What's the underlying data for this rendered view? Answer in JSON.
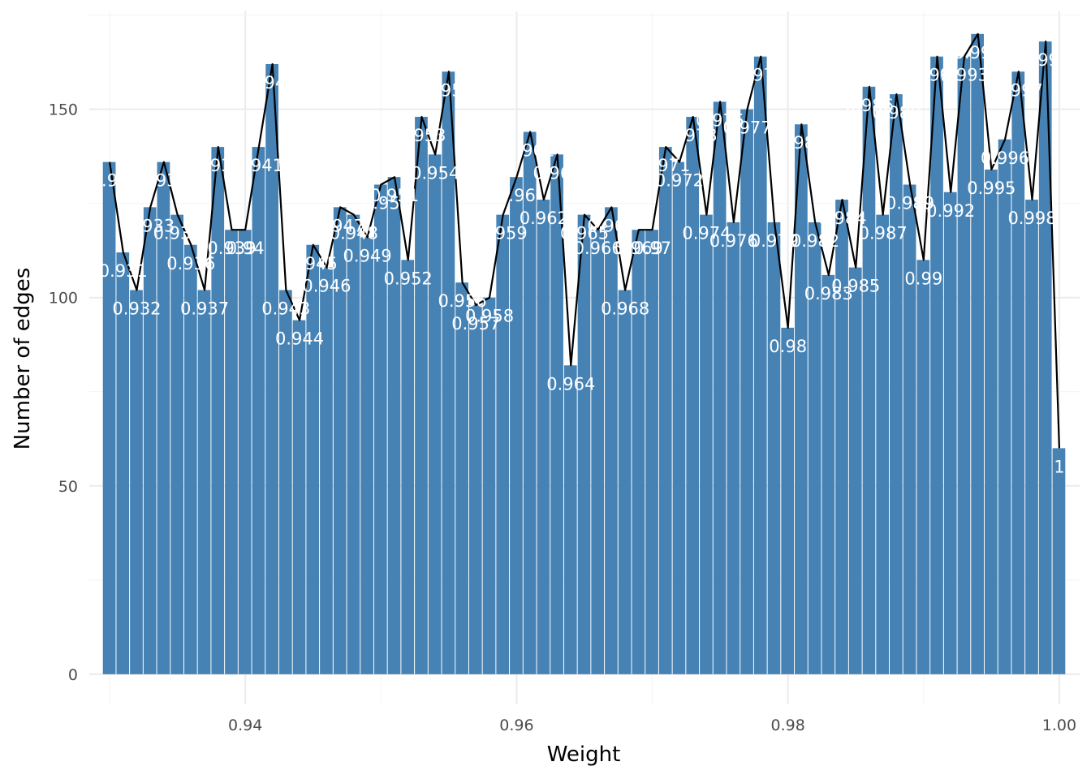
{
  "chart_data": {
    "type": "bar",
    "xlabel": "Weight",
    "ylabel": "Number of edges",
    "xlim": [
      0.9285,
      1.0015
    ],
    "ylim": [
      -8,
      176
    ],
    "x_ticks": [
      0.94,
      0.96,
      0.98,
      1.0
    ],
    "x_tick_labels": [
      "0.94",
      "0.96",
      "0.98",
      "1.00"
    ],
    "y_ticks": [
      0,
      50,
      100,
      150
    ],
    "y_tick_labels": [
      "0",
      "50",
      "100",
      "150"
    ],
    "grid": true,
    "bar_color": "#4682B4",
    "line_color": "#000000",
    "label_color": "#FFFFFF",
    "x": [
      0.93,
      0.931,
      0.932,
      0.933,
      0.934,
      0.935,
      0.936,
      0.937,
      0.938,
      0.939,
      0.94,
      0.941,
      0.942,
      0.943,
      0.944,
      0.945,
      0.946,
      0.947,
      0.948,
      0.949,
      0.95,
      0.951,
      0.952,
      0.953,
      0.954,
      0.955,
      0.956,
      0.957,
      0.958,
      0.959,
      0.96,
      0.961,
      0.962,
      0.963,
      0.964,
      0.965,
      0.966,
      0.967,
      0.968,
      0.969,
      0.97,
      0.971,
      0.972,
      0.973,
      0.974,
      0.975,
      0.976,
      0.977,
      0.978,
      0.979,
      0.98,
      0.981,
      0.982,
      0.983,
      0.984,
      0.985,
      0.986,
      0.987,
      0.988,
      0.989,
      0.99,
      0.991,
      0.992,
      0.993,
      0.994,
      0.995,
      0.996,
      0.997,
      0.998,
      0.999,
      1.0
    ],
    "values": [
      136,
      112,
      102,
      124,
      136,
      122,
      114,
      102,
      140,
      118,
      118,
      140,
      162,
      102,
      94,
      114,
      108,
      124,
      122,
      116,
      130,
      132,
      110,
      148,
      138,
      160,
      104,
      98,
      100,
      122,
      132,
      144,
      126,
      138,
      82,
      122,
      118,
      124,
      102,
      118,
      118,
      140,
      136,
      148,
      122,
      152,
      120,
      150,
      164,
      120,
      92,
      146,
      120,
      106,
      126,
      108,
      156,
      122,
      154,
      130,
      110,
      164,
      128,
      164,
      170,
      134,
      142,
      160,
      126,
      168,
      60
    ],
    "labels": [
      "0.93",
      "0.931",
      "0.932",
      "0.933",
      "0.934",
      "0.935",
      "0.936",
      "0.937",
      "0.938",
      "0.939",
      "0.94",
      "0.941",
      "0.942",
      "0.943",
      "0.944",
      "0.945",
      "0.946",
      "0.947",
      "0.948",
      "0.949",
      "0.95",
      "0.951",
      "0.952",
      "0.953",
      "0.954",
      "0.955",
      "0.956",
      "0.957",
      "0.958",
      "0.959",
      "0.96",
      "0.961",
      "0.962",
      "0.963",
      "0.964",
      "0.965",
      "0.966",
      "0.967",
      "0.968",
      "0.969",
      "0.97",
      "0.971",
      "0.972",
      "0.973",
      "0.974",
      "0.975",
      "0.976",
      "0.977",
      "0.978",
      "0.979",
      "0.98",
      "0.981",
      "0.982",
      "0.983",
      "0.984",
      "0.985",
      "0.986",
      "0.987",
      "0.988",
      "0.989",
      "0.99",
      "0.991",
      "0.992",
      "0.993",
      "0.994",
      "0.995",
      "0.996",
      "0.997",
      "0.998",
      "0.999",
      "1"
    ]
  }
}
